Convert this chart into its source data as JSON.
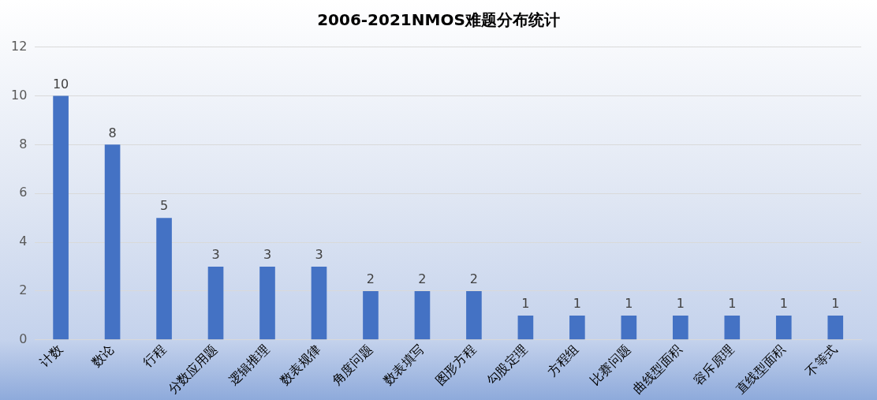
{
  "chart_data": {
    "type": "bar",
    "title": "2006-2021NMOS难题分布统计",
    "categories": [
      "计数",
      "数论",
      "行程",
      "分数应用题",
      "逻辑推理",
      "数表规律",
      "角度问题",
      "数表填写",
      "图形方程",
      "勾股定理",
      "方程组",
      "比赛问题",
      "曲线型面积",
      "容斥原理",
      "直线型面积",
      "不等式"
    ],
    "values": [
      10,
      8,
      5,
      3,
      3,
      3,
      2,
      2,
      2,
      1,
      1,
      1,
      1,
      1,
      1,
      1
    ],
    "color": "#4472c4",
    "ylim": [
      0,
      12
    ],
    "yticks": [
      0,
      2,
      4,
      6,
      8,
      10,
      12
    ],
    "grid": "y",
    "data_labels": true
  }
}
